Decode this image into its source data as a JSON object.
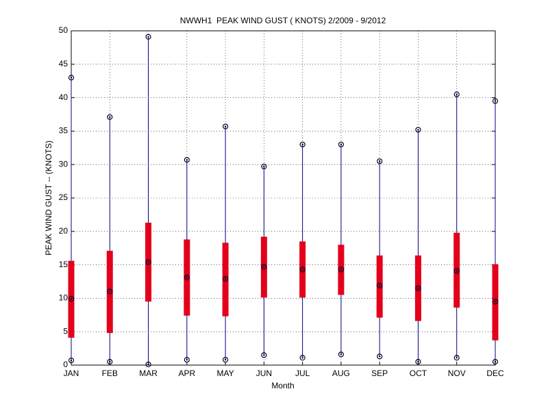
{
  "chart_data": {
    "type": "box",
    "title": "NWWH1  PEAK WIND GUST ( KNOTS) 2/2009 - 9/2012",
    "x_label": "Month",
    "y_label": "PEAK WIND GUST -- (KNOTS)",
    "categories": [
      "JAN",
      "FEB",
      "MAR",
      "APR",
      "MAY",
      "JUN",
      "JUL",
      "AUG",
      "SEP",
      "OCT",
      "NOV",
      "DEC"
    ],
    "min": [
      0.7,
      0.5,
      0.1,
      0.8,
      0.8,
      1.5,
      1.1,
      1.6,
      1.3,
      0.5,
      1.1,
      0.5
    ],
    "q1": [
      4.1,
      4.8,
      9.5,
      7.4,
      7.3,
      10.1,
      10.1,
      10.5,
      7.1,
      6.6,
      8.6,
      3.7
    ],
    "median": [
      9.9,
      11.0,
      15.4,
      13.1,
      12.9,
      14.7,
      14.3,
      14.3,
      11.9,
      11.5,
      14.1,
      9.5
    ],
    "q3": [
      15.6,
      17.1,
      21.3,
      18.8,
      18.3,
      19.2,
      18.5,
      18.0,
      16.4,
      16.4,
      19.8,
      15.1
    ],
    "max": [
      43.0,
      37.1,
      49.1,
      30.7,
      35.7,
      29.7,
      33.0,
      33.0,
      30.5,
      35.2,
      40.5,
      39.5
    ],
    "whisker_color": "#00007f",
    "box_color": "#e4001b",
    "ylim": [
      0,
      50
    ],
    "yticks": [
      0,
      5,
      10,
      15,
      20,
      25,
      30,
      35,
      40,
      45,
      50
    ],
    "grid": true
  }
}
